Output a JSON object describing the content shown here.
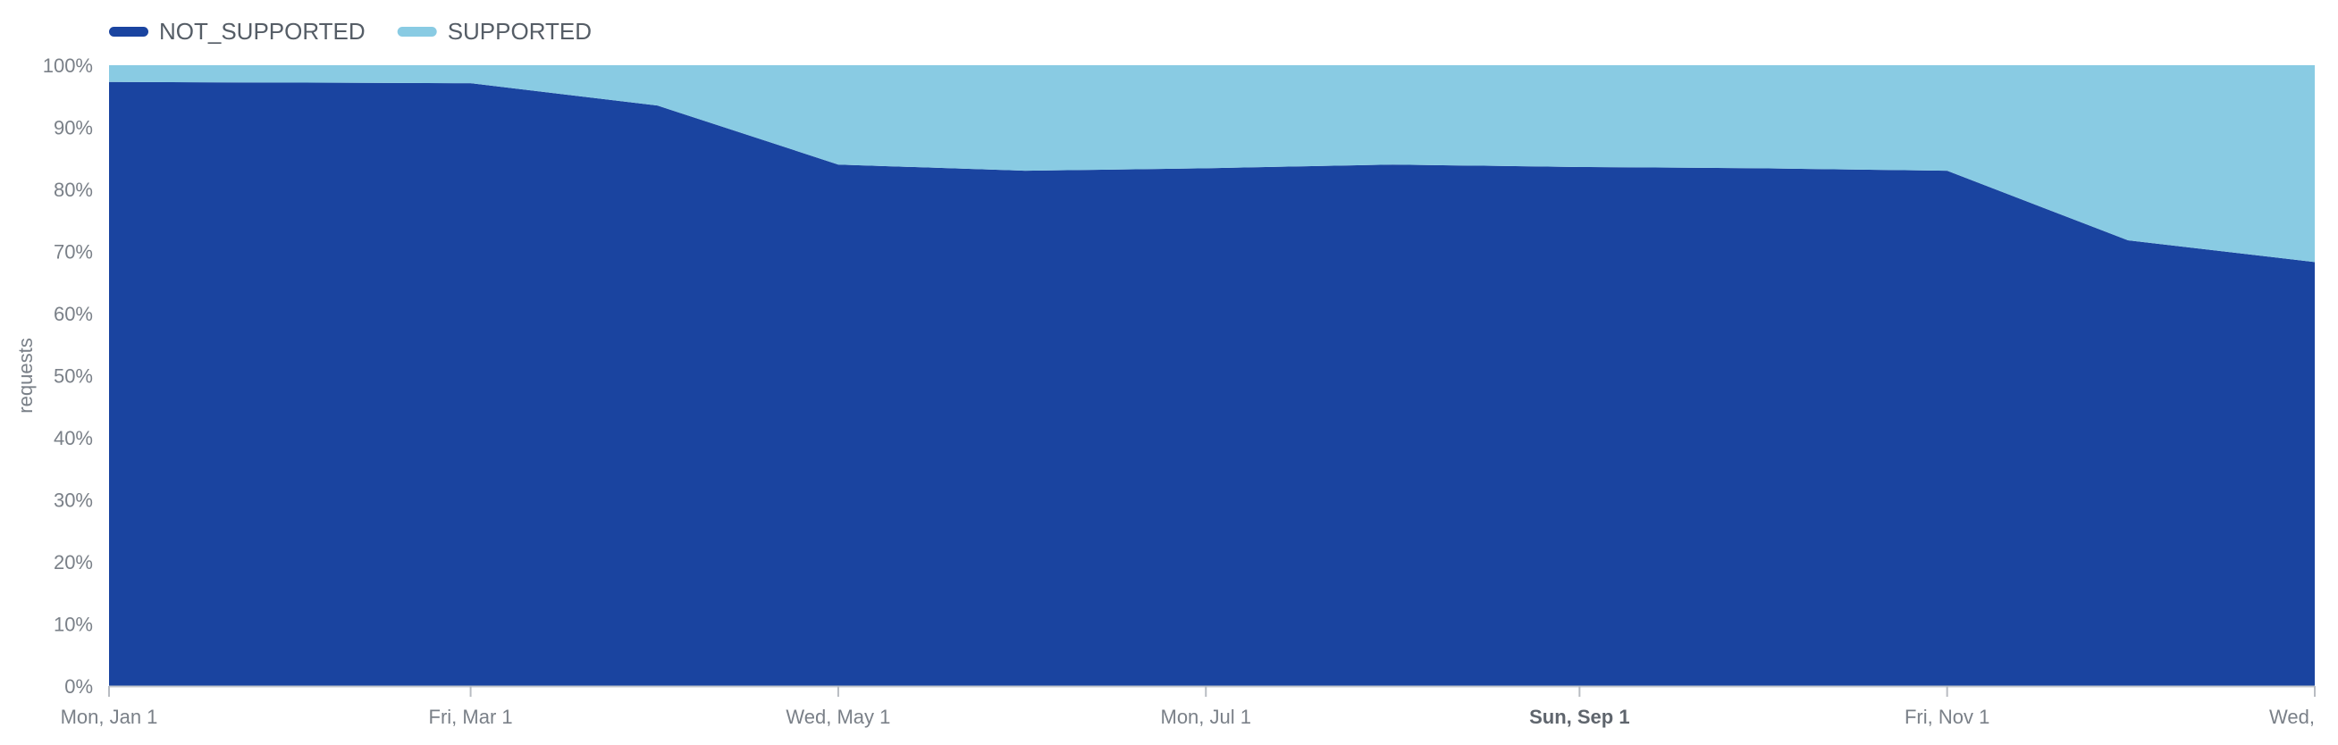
{
  "chart_data": {
    "type": "area",
    "stacked": true,
    "normalized_percent": true,
    "x_format": "date",
    "x": [
      "2024-01-01",
      "2024-03-01",
      "2024-04-01",
      "2024-05-01",
      "2024-06-01",
      "2024-07-01",
      "2024-08-01",
      "2024-09-01",
      "2024-10-01",
      "2024-11-01",
      "2024-12-01",
      "2025-01-01"
    ],
    "series": [
      {
        "name": "NOT_SUPPORTED",
        "color": "#1a44a0",
        "values": [
          97.3,
          97.1,
          93.5,
          84.0,
          83.0,
          83.4,
          84.0,
          83.6,
          83.4,
          83.0,
          71.8,
          68.3
        ]
      },
      {
        "name": "SUPPORTED",
        "color": "#89cbe3",
        "values": [
          2.7,
          2.9,
          6.5,
          16.0,
          17.0,
          16.6,
          16.0,
          16.4,
          16.6,
          17.0,
          28.2,
          31.7
        ]
      }
    ],
    "xlim": [
      "2024-01-01",
      "2025-01-01"
    ],
    "ylim": [
      0,
      100
    ],
    "ylabel": "requests",
    "xlabel": "",
    "y_ticks": [
      "0%",
      "10%",
      "20%",
      "30%",
      "40%",
      "50%",
      "60%",
      "70%",
      "80%",
      "90%",
      "100%"
    ],
    "x_ticks": [
      {
        "date": "2024-01-01",
        "label": "Mon, Jan 1",
        "bold": false
      },
      {
        "date": "2024-03-01",
        "label": "Fri, Mar 1",
        "bold": false
      },
      {
        "date": "2024-05-01",
        "label": "Wed, May 1",
        "bold": false
      },
      {
        "date": "2024-07-01",
        "label": "Mon, Jul 1",
        "bold": false
      },
      {
        "date": "2024-09-01",
        "label": "Sun, Sep 1",
        "bold": true
      },
      {
        "date": "2024-11-01",
        "label": "Fri, Nov 1",
        "bold": false
      },
      {
        "date": "2025-01-01",
        "label": "Wed,",
        "bold": false
      }
    ],
    "legend": {
      "position": "top-left",
      "entries": [
        "NOT_SUPPORTED",
        "SUPPORTED"
      ]
    },
    "grid": false
  }
}
